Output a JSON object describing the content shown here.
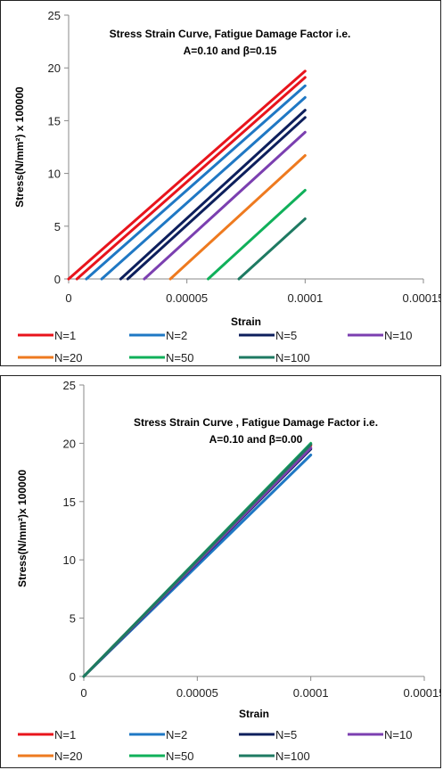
{
  "chart_data": [
    {
      "type": "line",
      "title": [
        "Stress Strain Curve,  Fatigue Damage  Factor i.e.",
        "A=0.10 and β=0.15"
      ],
      "xlabel": "Strain",
      "ylabel": "Stress(N/mm²)  x 100000",
      "xlim": [
        0,
        0.00015
      ],
      "ylim": [
        0,
        25
      ],
      "xticks": [
        0,
        5e-05,
        0.0001,
        0.00015
      ],
      "xtick_labels": [
        "0",
        "0.00005",
        "0.0001",
        "0.00015"
      ],
      "yticks": [
        0,
        5,
        10,
        15,
        20,
        25
      ],
      "ytick_labels": [
        "0",
        "5",
        "10",
        "15",
        "20",
        "25"
      ],
      "legend_position": "bottom",
      "series": [
        {
          "name": "N=1",
          "color": "#e8141c",
          "x": [
            0,
            0.0001
          ],
          "y": [
            0,
            19.7
          ]
        },
        {
          "name": "N=2",
          "color": "#1f78c4",
          "x": [
            7.5e-06,
            0.0001
          ],
          "y": [
            0,
            18.3
          ]
        },
        {
          "name": "N=5",
          "color": "#0d1f5c",
          "x": [
            2.2e-05,
            0.0001
          ],
          "y": [
            0,
            16.0
          ]
        },
        {
          "name": "N=10",
          "color": "#7b3fb0",
          "x": [
            3.2e-05,
            0.0001
          ],
          "y": [
            0,
            13.9
          ]
        },
        {
          "name": "N=20",
          "color": "#ee7a1f",
          "x": [
            4.3e-05,
            0.0001
          ],
          "y": [
            0,
            11.7
          ]
        },
        {
          "name": "N=50",
          "color": "#10b05a",
          "x": [
            5.9e-05,
            0.0001
          ],
          "y": [
            0,
            8.4
          ]
        },
        {
          "name": "N=100",
          "color": "#1e7a62",
          "x": [
            7.2e-05,
            0.0001
          ],
          "y": [
            0,
            5.7
          ]
        }
      ],
      "extra_series": [
        {
          "name": "N=1",
          "color": "#e8141c",
          "x": [
            3.5e-06,
            0.0001
          ],
          "y": [
            0,
            19.1
          ]
        },
        {
          "name": "N=2",
          "color": "#1f78c4",
          "x": [
            1.4e-05,
            0.0001
          ],
          "y": [
            0,
            17.2
          ]
        },
        {
          "name": "N=5",
          "color": "#0d1f5c",
          "x": [
            2.5e-05,
            0.0001
          ],
          "y": [
            0,
            15.3
          ]
        }
      ]
    },
    {
      "type": "line",
      "title": [
        "Stress Strain Curve , Fatigue Damage  Factor i.e.",
        "A=0.10 and β=0.00"
      ],
      "xlabel": "Strain",
      "ylabel": "Stress(N/mm²)x 100000",
      "xlim": [
        0,
        0.00015
      ],
      "ylim": [
        0,
        25
      ],
      "xticks": [
        0,
        5e-05,
        0.0001,
        0.00015
      ],
      "xtick_labels": [
        "0",
        "0.00005",
        "0.0001",
        "0.00015"
      ],
      "yticks": [
        0,
        5,
        10,
        15,
        20,
        25
      ],
      "ytick_labels": [
        "0",
        "5",
        "10",
        "15",
        "20",
        "25"
      ],
      "legend_position": "bottom",
      "series": [
        {
          "name": "N=1",
          "color": "#e8141c",
          "x": [
            0,
            0.0001
          ],
          "y": [
            0,
            19.8
          ]
        },
        {
          "name": "N=2",
          "color": "#1f78c4",
          "x": [
            0,
            0.0001
          ],
          "y": [
            0,
            19.0
          ]
        },
        {
          "name": "N=5",
          "color": "#0d1f5c",
          "x": [
            0,
            0.0001
          ],
          "y": [
            0,
            19.5
          ]
        },
        {
          "name": "N=10",
          "color": "#7b3fb0",
          "x": [
            0,
            0.0001
          ],
          "y": [
            0,
            19.6
          ]
        },
        {
          "name": "N=20",
          "color": "#ee7a1f",
          "x": [
            0,
            0.0001
          ],
          "y": [
            0,
            19.9
          ]
        },
        {
          "name": "N=50",
          "color": "#10b05a",
          "x": [
            0,
            0.0001
          ],
          "y": [
            0,
            20.0
          ]
        },
        {
          "name": "N=100",
          "color": "#1e7a62",
          "x": [
            0,
            0.0001
          ],
          "y": [
            0,
            19.9
          ]
        }
      ],
      "extra_series": []
    }
  ]
}
